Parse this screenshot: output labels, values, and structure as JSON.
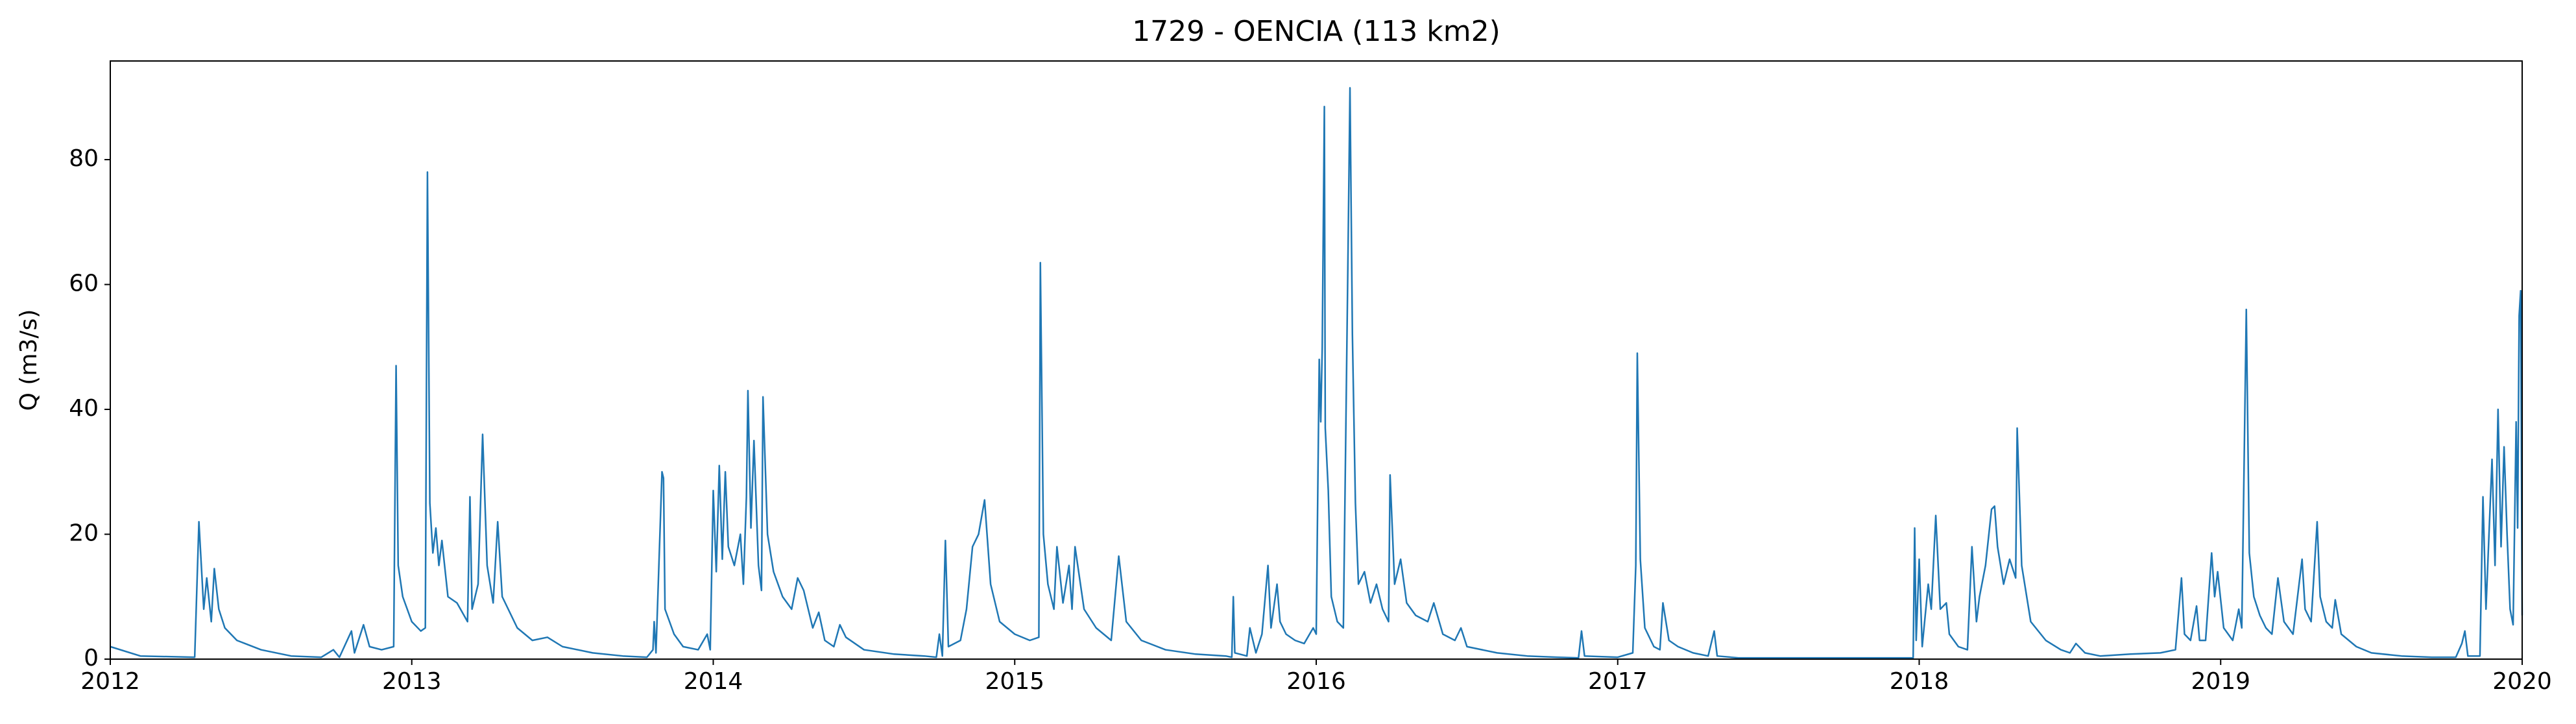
{
  "chart_data": {
    "type": "line",
    "title": "1729 - OENCIA (113 km2)",
    "ylabel": "Q (m3/s)",
    "color": "#1f77b4",
    "xlim": [
      2012,
      2020
    ],
    "xticks": [
      2012,
      2013,
      2014,
      2015,
      2016,
      2017,
      2018,
      2019,
      2020
    ],
    "ylim": [
      0,
      95.8
    ],
    "yticks": [
      0,
      20,
      40,
      60,
      80
    ],
    "x": [
      2012.0,
      2012.1,
      2012.28,
      2012.294,
      2012.31,
      2012.32,
      2012.335,
      2012.345,
      2012.36,
      2012.38,
      2012.42,
      2012.5,
      2012.6,
      2012.7,
      2012.74,
      2012.76,
      2012.8,
      2012.81,
      2012.84,
      2012.86,
      2012.9,
      2012.94,
      2012.948,
      2012.955,
      2012.97,
      2013.0,
      2013.03,
      2013.045,
      2013.052,
      2013.06,
      2013.07,
      2013.08,
      2013.09,
      2013.1,
      2013.12,
      2013.15,
      2013.185,
      2013.193,
      2013.2,
      2013.22,
      2013.235,
      2013.25,
      2013.27,
      2013.285,
      2013.3,
      2013.35,
      2013.4,
      2013.45,
      2013.5,
      2013.6,
      2013.7,
      2013.78,
      2013.8,
      2013.804,
      2013.81,
      2013.83,
      2013.835,
      2013.84,
      2013.87,
      2013.9,
      2013.95,
      2013.98,
      2013.99,
      2014.0,
      2014.01,
      2014.02,
      2014.03,
      2014.04,
      2014.05,
      2014.07,
      2014.09,
      2014.1,
      2014.11,
      2014.115,
      2014.125,
      2014.135,
      2014.15,
      2014.16,
      2014.165,
      2014.18,
      2014.2,
      2014.23,
      2014.26,
      2014.28,
      2014.3,
      2014.33,
      2014.35,
      2014.37,
      2014.4,
      2014.42,
      2014.44,
      2014.5,
      2014.6,
      2014.7,
      2014.74,
      2014.75,
      2014.76,
      2014.77,
      2014.78,
      2014.82,
      2014.84,
      2014.86,
      2014.88,
      2014.9,
      2014.92,
      2014.95,
      2015.0,
      2015.05,
      2015.08,
      2015.085,
      2015.095,
      2015.11,
      2015.13,
      2015.14,
      2015.16,
      2015.18,
      2015.19,
      2015.2,
      2015.23,
      2015.27,
      2015.32,
      2015.345,
      2015.37,
      2015.42,
      2015.5,
      2015.6,
      2015.7,
      2015.72,
      2015.725,
      2015.73,
      2015.77,
      2015.78,
      2015.8,
      2015.82,
      2015.84,
      2015.85,
      2015.87,
      2015.88,
      2015.9,
      2015.93,
      2015.96,
      2015.99,
      2016.0,
      2016.01,
      2016.015,
      2016.02,
      2016.027,
      2016.03,
      2016.04,
      2016.05,
      2016.07,
      2016.09,
      2016.105,
      2016.112,
      2016.12,
      2016.13,
      2016.14,
      2016.16,
      2016.18,
      2016.2,
      2016.22,
      2016.24,
      2016.245,
      2016.26,
      2016.28,
      2016.3,
      2016.33,
      2016.37,
      2016.39,
      2016.42,
      2016.46,
      2016.48,
      2016.5,
      2016.6,
      2016.7,
      2016.8,
      2016.87,
      2016.88,
      2016.89,
      2017.0,
      2017.05,
      2017.06,
      2017.065,
      2017.075,
      2017.09,
      2017.12,
      2017.14,
      2017.15,
      2017.17,
      2017.2,
      2017.25,
      2017.3,
      2017.32,
      2017.33,
      2017.4,
      2017.98,
      2017.985,
      2017.99,
      2018.0,
      2018.01,
      2018.03,
      2018.04,
      2018.055,
      2018.07,
      2018.09,
      2018.1,
      2018.13,
      2018.16,
      2018.175,
      2018.19,
      2018.2,
      2018.22,
      2018.24,
      2018.25,
      2018.26,
      2018.28,
      2018.3,
      2018.32,
      2018.325,
      2018.34,
      2018.37,
      2018.42,
      2018.47,
      2018.5,
      2018.52,
      2018.55,
      2018.6,
      2018.7,
      2018.8,
      2018.85,
      2018.87,
      2018.88,
      2018.9,
      2018.92,
      2018.93,
      2018.95,
      2018.97,
      2018.98,
      2018.99,
      2019.01,
      2019.04,
      2019.06,
      2019.07,
      2019.085,
      2019.095,
      2019.11,
      2019.13,
      2019.15,
      2019.17,
      2019.19,
      2019.21,
      2019.24,
      2019.27,
      2019.28,
      2019.3,
      2019.32,
      2019.33,
      2019.35,
      2019.37,
      2019.38,
      2019.4,
      2019.45,
      2019.5,
      2019.6,
      2019.7,
      2019.78,
      2019.8,
      2019.81,
      2019.82,
      2019.86,
      2019.87,
      2019.88,
      2019.9,
      2019.91,
      2019.92,
      2019.93,
      2019.94,
      2019.95,
      2019.96,
      2019.97,
      2019.98,
      2019.985,
      2019.99,
      2019.995,
      2020.0
    ],
    "values": [
      2,
      0.5,
      0.3,
      22,
      8,
      13,
      6,
      14.5,
      8,
      5,
      3,
      1.5,
      0.5,
      0.3,
      1.5,
      0.3,
      4.5,
      1,
      5.5,
      2,
      1.5,
      2,
      47,
      15,
      10,
      6,
      4.5,
      5,
      78,
      25,
      17,
      21,
      15,
      19,
      10,
      9,
      6,
      26,
      8,
      12,
      36,
      15,
      9,
      22,
      10,
      5,
      3,
      3.5,
      2,
      1,
      0.5,
      0.3,
      1.5,
      6,
      1,
      30,
      29,
      8,
      4,
      2,
      1.5,
      4,
      1.5,
      27,
      14,
      31,
      16,
      30,
      18,
      15,
      20,
      12,
      26,
      43,
      21,
      35,
      15,
      11,
      42,
      20,
      14,
      10,
      8,
      13,
      11,
      5,
      7.5,
      3,
      2,
      5.5,
      3.5,
      1.5,
      0.8,
      0.5,
      0.3,
      4,
      0.5,
      19,
      2,
      3,
      8,
      18,
      20,
      25.5,
      12,
      6,
      4,
      3,
      3.5,
      63.5,
      20,
      12,
      8,
      18,
      9,
      15,
      8,
      18,
      8,
      5,
      3,
      16.5,
      6,
      3,
      1.5,
      0.8,
      0.5,
      0.3,
      10,
      1,
      0.5,
      5,
      1,
      4,
      15,
      5,
      12,
      6,
      4,
      3,
      2.5,
      5,
      4,
      48,
      38,
      50,
      88.5,
      37,
      27,
      10,
      6,
      5,
      63,
      91.5,
      52,
      25,
      12,
      14,
      9,
      12,
      8,
      6,
      29.5,
      12,
      16,
      9,
      7,
      6,
      9,
      4,
      3,
      5,
      2,
      1,
      0.5,
      0.3,
      0.2,
      4.5,
      0.5,
      0.3,
      1,
      15,
      49,
      16,
      5,
      2,
      1.5,
      9,
      3,
      2,
      1,
      0.5,
      4.5,
      0.5,
      0.2,
      0.2,
      21,
      3,
      16,
      2,
      12,
      8,
      23,
      8,
      9,
      4,
      2,
      1.5,
      18,
      6,
      10,
      15,
      24,
      24.5,
      18,
      12,
      16,
      13,
      37,
      15,
      6,
      3,
      1.5,
      1,
      2.5,
      1,
      0.5,
      0.8,
      1,
      1.5,
      13,
      4,
      3,
      8.5,
      3,
      3,
      17,
      10,
      14,
      5,
      3,
      8,
      5,
      56,
      17,
      10,
      7,
      5,
      4,
      13,
      6,
      4,
      16,
      8,
      6,
      22,
      10,
      6,
      5,
      9.5,
      4,
      2,
      1,
      0.5,
      0.3,
      0.3,
      2.5,
      4.5,
      0.5,
      0.5,
      26,
      8,
      32,
      15,
      40,
      18,
      34,
      20,
      8,
      5.5,
      38,
      21,
      55,
      59,
      7
    ]
  }
}
